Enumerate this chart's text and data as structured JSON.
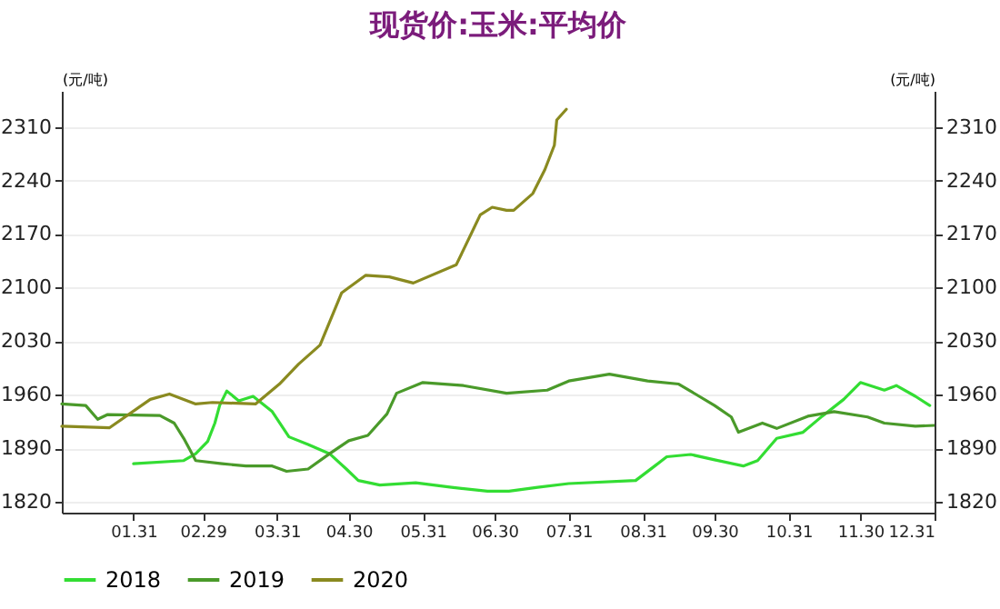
{
  "chart_data": {
    "type": "line",
    "title": "现货价:玉米:平均价",
    "ylabel": "(元/吨)",
    "y2label": "(元/吨)",
    "xlim": [
      "--01-01",
      "--12-31"
    ],
    "xticks": [
      {
        "value": "--01-31",
        "label": "01.31"
      },
      {
        "value": "--02-29",
        "label": "02.29"
      },
      {
        "value": "--03-31",
        "label": "03.31"
      },
      {
        "value": "--04-30",
        "label": "04.30"
      },
      {
        "value": "--05-31",
        "label": "05.31"
      },
      {
        "value": "--06-30",
        "label": "06.30"
      },
      {
        "value": "--07-31",
        "label": "07.31"
      },
      {
        "value": "--08-31",
        "label": "08.31"
      },
      {
        "value": "--09-30",
        "label": "09.30"
      },
      {
        "value": "--10-31",
        "label": "10.31"
      },
      {
        "value": "--11-30",
        "label": "11.30"
      },
      {
        "value": "--12-31",
        "label": "12.31"
      }
    ],
    "ylim": [
      1806,
      2357
    ],
    "yticks": [
      1820,
      1890,
      1960,
      2030,
      2100,
      2170,
      2240,
      2310
    ],
    "y2lim": [
      1806,
      2357
    ],
    "y2ticks": [
      1820,
      1890,
      1960,
      2030,
      2100,
      2170,
      2240,
      2310
    ],
    "grid": "y",
    "legend": "bottom",
    "marker": "none",
    "line_style": "solid",
    "series": [
      {
        "name": "2018",
        "color": "#33dd33",
        "x": [
          "--01-31",
          "--02-21",
          "--02-26",
          "--03-02",
          "--03-05",
          "--03-07",
          "--03-10",
          "--03-15",
          "--03-21",
          "--03-29",
          "--04-05",
          "--04-13",
          "--04-22",
          "--04-29",
          "--05-04",
          "--05-13",
          "--05-28",
          "--06-12",
          "--06-27",
          "--07-06",
          "--07-18",
          "--07-31",
          "--08-28",
          "--09-05",
          "--09-10",
          "--09-20",
          "--09-30",
          "--10-12",
          "--10-18",
          "--10-26",
          "--11-06",
          "--11-14",
          "--11-23",
          "--11-30",
          "--12-10",
          "--12-15",
          "--12-23",
          "--12-29"
        ],
        "values": [
          1870,
          1874,
          1883,
          1899,
          1923,
          1946,
          1965,
          1952,
          1958,
          1938,
          1905,
          1895,
          1883,
          1863,
          1848,
          1842,
          1845,
          1839,
          1834,
          1834,
          1839,
          1844,
          1848,
          1867,
          1879,
          1882,
          1875,
          1867,
          1874,
          1903,
          1911,
          1932,
          1954,
          1976,
          1966,
          1972,
          1958,
          1946
        ]
      },
      {
        "name": "2019",
        "color": "#4a9a2a",
        "x": [
          "--01-01",
          "--01-11",
          "--01-16",
          "--01-20",
          "--02-11",
          "--02-17",
          "--02-21",
          "--02-26",
          "--03-08",
          "--03-18",
          "--03-29",
          "--04-04",
          "--04-13",
          "--04-22",
          "--04-30",
          "--05-08",
          "--05-16",
          "--05-20",
          "--05-31",
          "--06-17",
          "--07-05",
          "--07-22",
          "--07-31",
          "--08-17",
          "--09-02",
          "--09-15",
          "--09-30",
          "--10-07",
          "--10-10",
          "--10-20",
          "--10-26",
          "--11-08",
          "--11-19",
          "--12-03",
          "--12-10",
          "--12-23",
          "--12-31"
        ],
        "values": [
          1948,
          1946,
          1928,
          1934,
          1933,
          1923,
          1903,
          1874,
          1870,
          1867,
          1867,
          1860,
          1863,
          1883,
          1900,
          1907,
          1935,
          1962,
          1976,
          1972,
          1962,
          1966,
          1978,
          1987,
          1978,
          1974,
          1946,
          1931,
          1911,
          1923,
          1916,
          1932,
          1938,
          1931,
          1923,
          1919,
          1920
        ]
      },
      {
        "name": "2020",
        "color": "#8a8a20",
        "x": [
          "--01-01",
          "--01-21",
          "--02-07",
          "--02-15",
          "--02-26",
          "--03-04",
          "--03-22",
          "--04-01",
          "--04-09",
          "--04-18",
          "--04-27",
          "--05-07",
          "--05-17",
          "--05-27",
          "--06-14",
          "--06-24",
          "--06-29",
          "--07-05",
          "--07-08",
          "--07-16",
          "--07-21",
          "--07-25",
          "--07-26",
          "--07-30"
        ],
        "values": [
          1919,
          1917,
          1954,
          1961,
          1948,
          1950,
          1948,
          1974,
          2000,
          2025,
          2093,
          2116,
          2114,
          2106,
          2130,
          2195,
          2205,
          2201,
          2201,
          2223,
          2254,
          2286,
          2319,
          2333
        ]
      }
    ]
  }
}
